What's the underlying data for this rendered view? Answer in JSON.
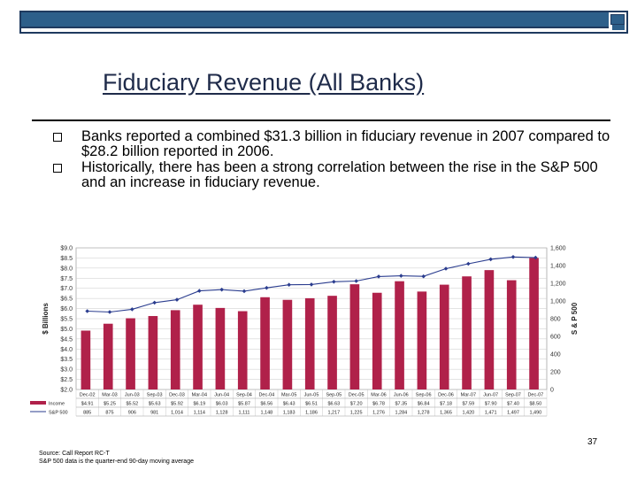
{
  "header": {
    "accent_color": "#2d5f8a"
  },
  "slide": {
    "title": "Fiduciary Revenue (All Banks)",
    "bullets": [
      "Banks reported a combined $31.3 billion in fiduciary revenue in 2007 compared to $28.2 billion reported in 2006.",
      "Historically, there has been a strong correlation between the rise in the S&P 500 and an increase in fiduciary revenue."
    ],
    "page_number": "37",
    "source_lines": [
      "Source: Call Report RC-T",
      "S&P 500 data is the quarter-end 90-day moving average"
    ]
  },
  "chart_data": {
    "type": "bar+line",
    "categories": [
      "Dec-02",
      "Mar-03",
      "Jun-03",
      "Sep-03",
      "Dec-03",
      "Mar-04",
      "Jun-04",
      "Sep-04",
      "Dec-04",
      "Mar-05",
      "Jun-05",
      "Sep-05",
      "Dec-05",
      "Mar-06",
      "Jun-06",
      "Sep-06",
      "Dec-06",
      "Mar-07",
      "Jun-07",
      "Sep-07",
      "Dec-07"
    ],
    "series": [
      {
        "name": "Income",
        "axis": "left",
        "color": "#b0214a",
        "values": [
          4.91,
          5.25,
          5.52,
          5.63,
          5.92,
          6.19,
          6.03,
          5.87,
          6.56,
          6.43,
          6.51,
          6.63,
          7.2,
          6.78,
          7.35,
          6.84,
          7.18,
          7.59,
          7.9,
          7.4,
          8.5
        ],
        "labels": [
          "$4.91",
          "$5.25",
          "$5.52",
          "$5.63",
          "$5.92",
          "$6.19",
          "$6.03",
          "$5.87",
          "$6.56",
          "$6.43",
          "$6.51",
          "$6.63",
          "$7.20",
          "$6.78",
          "$7.35",
          "$6.84",
          "$7.18",
          "$7.59",
          "$7.90",
          "$7.40",
          "$8.50"
        ]
      },
      {
        "name": "S&P 500",
        "axis": "right",
        "color": "#2b3d8f",
        "values": [
          885,
          875,
          906,
          981,
          1014,
          1114,
          1128,
          1111,
          1148,
          1183,
          1186,
          1217,
          1225,
          1276,
          1284,
          1278,
          1365,
          1420,
          1471,
          1497,
          1490
        ],
        "labels": [
          "885",
          "875",
          "906",
          "981",
          "1,014",
          "1,114",
          "1,128",
          "1,111",
          "1,148",
          "1,183",
          "1,186",
          "1,217",
          "1,225",
          "1,276",
          "1,284",
          "1,278",
          "1,365",
          "1,420",
          "1,471",
          "1,497",
          "1,490"
        ]
      }
    ],
    "ylabel": "$ Billions",
    "y2label": "S & P 500",
    "ylim": [
      2.0,
      9.0
    ],
    "y2lim": [
      0,
      1600
    ],
    "yticks": [
      "$2.0",
      "$2.5",
      "$3.0",
      "$3.5",
      "$4.0",
      "$4.5",
      "$5.0",
      "$5.5",
      "$6.0",
      "$6.5",
      "$7.0",
      "$7.5",
      "$8.0",
      "$8.5",
      "$9.0"
    ],
    "y2ticks": [
      "0",
      "200",
      "400",
      "600",
      "800",
      "1,000",
      "1,200",
      "1,400",
      "1,600"
    ],
    "grid": true
  }
}
